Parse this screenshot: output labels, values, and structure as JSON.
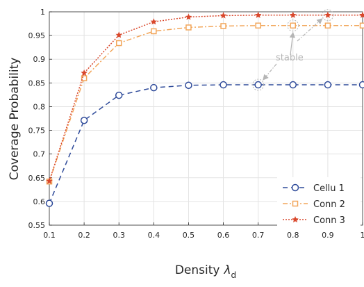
{
  "chart_data": {
    "type": "line",
    "xlabel": "Density",
    "xlabel_symbol": "λ",
    "xlabel_subscript": "d",
    "ylabel": "Coverage Probability",
    "xlim": [
      0.1,
      1
    ],
    "ylim": [
      0.55,
      1
    ],
    "grid": true,
    "legend_position": "bottom-right",
    "x": [
      0.1,
      0.2,
      0.3,
      0.4,
      0.5,
      0.6,
      0.7,
      0.8,
      0.9,
      1.0
    ],
    "x_tick_labels": [
      "0.1",
      "0.2",
      "0.3",
      "0.4",
      "0.5",
      "0.6",
      "0.7",
      "0.8",
      "0.9",
      "1"
    ],
    "y_ticks": [
      0.55,
      0.6,
      0.65,
      0.7,
      0.75,
      0.8,
      0.85,
      0.9,
      0.95,
      1
    ],
    "y_tick_labels": [
      "0.55",
      "0.6",
      "0.65",
      "0.7",
      "0.75",
      "0.8",
      "0.85",
      "0.9",
      "0.95",
      "1"
    ],
    "series": [
      {
        "name": "Cellu 1",
        "values": [
          0.596,
          0.771,
          0.824,
          0.84,
          0.845,
          0.846,
          0.846,
          0.846,
          0.846,
          0.846
        ],
        "color": "#2f4b9a",
        "line_style": "dashed",
        "marker": "circle"
      },
      {
        "name": "Conn 2",
        "values": [
          0.642,
          0.86,
          0.934,
          0.959,
          0.967,
          0.97,
          0.971,
          0.971,
          0.971,
          0.971
        ],
        "color": "#f2a65a",
        "line_style": "dash-dot",
        "marker": "square"
      },
      {
        "name": "Conn 3",
        "values": [
          0.643,
          0.871,
          0.951,
          0.979,
          0.989,
          0.992,
          0.993,
          0.993,
          0.993,
          0.993
        ],
        "color": "#d9472b",
        "line_style": "dotted",
        "marker": "star"
      }
    ],
    "annotations": [
      {
        "text": "stable",
        "color": "#b5b5b5",
        "highlighted_points": [
          {
            "x": 0.7,
            "y": 0.846
          },
          {
            "x": 0.8,
            "y": 0.971
          },
          {
            "x": 0.9,
            "y": 0.993
          }
        ]
      }
    ]
  }
}
